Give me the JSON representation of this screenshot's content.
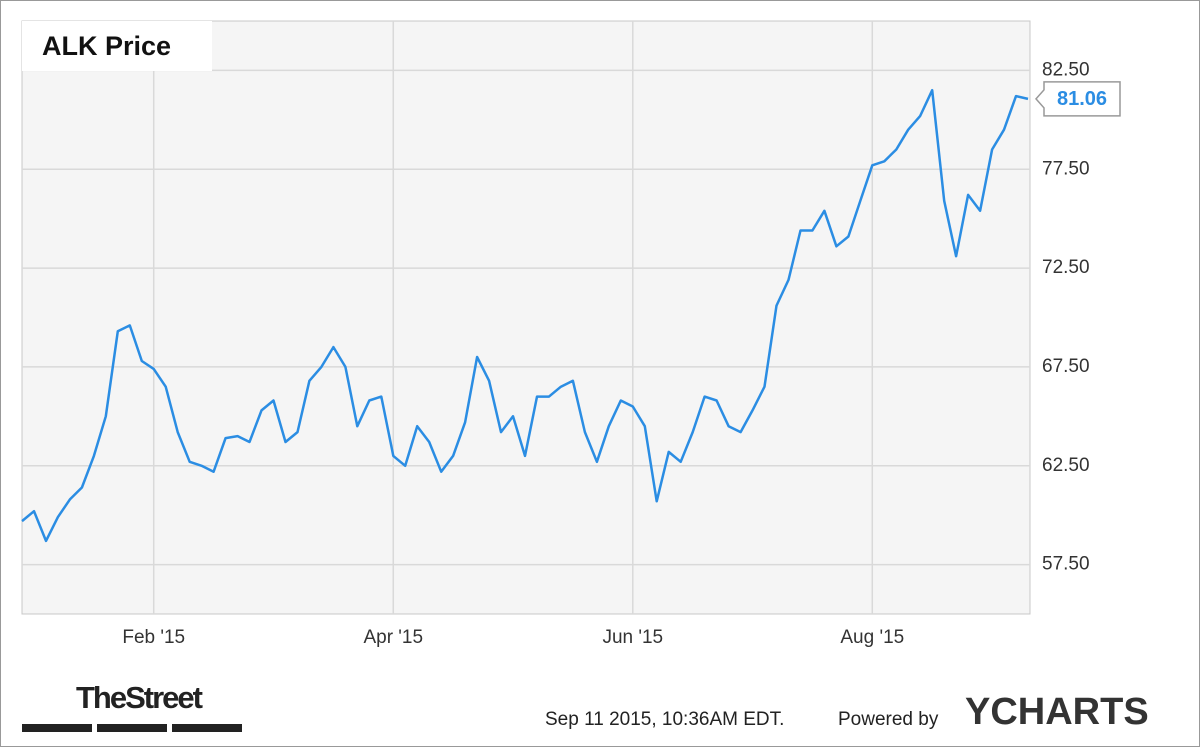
{
  "chart_data": {
    "type": "line",
    "title": "ALK Price",
    "categories": [
      null,
      null,
      null,
      null,
      null,
      null,
      null,
      null,
      null,
      null,
      null,
      "Feb '15",
      null,
      null,
      null,
      null,
      null,
      null,
      null,
      null,
      null,
      null,
      null,
      null,
      null,
      null,
      null,
      null,
      null,
      null,
      null,
      "Apr '15",
      null,
      null,
      null,
      null,
      null,
      null,
      null,
      null,
      null,
      null,
      null,
      null,
      null,
      null,
      null,
      null,
      null,
      null,
      null,
      "Jun '15",
      null,
      null,
      null,
      null,
      null,
      null,
      null,
      null,
      null,
      null,
      null,
      null,
      null,
      null,
      null,
      null,
      null,
      null,
      null,
      "Aug '15",
      null,
      null,
      null,
      null,
      null,
      null,
      null,
      null,
      null,
      null,
      null,
      null,
      null
    ],
    "series": [
      {
        "name": "ALK Price",
        "color": "#2b8de3",
        "values": [
          59.7,
          60.2,
          58.7,
          59.9,
          60.8,
          61.4,
          63.0,
          65.0,
          69.3,
          69.6,
          67.8,
          67.4,
          66.5,
          64.2,
          62.7,
          62.5,
          62.2,
          63.9,
          64.0,
          63.7,
          65.3,
          65.8,
          63.7,
          64.2,
          66.8,
          67.5,
          68.5,
          67.5,
          64.5,
          65.8,
          66.0,
          63.0,
          62.5,
          64.5,
          63.7,
          62.2,
          63.0,
          64.7,
          68.0,
          66.8,
          64.2,
          65.0,
          63.0,
          66.0,
          66.0,
          66.5,
          66.8,
          64.2,
          62.7,
          64.5,
          65.8,
          65.5,
          64.5,
          60.7,
          63.2,
          62.7,
          64.2,
          66.0,
          65.8,
          64.5,
          64.2,
          65.3,
          66.5,
          70.6,
          71.9,
          74.4,
          74.4,
          75.4,
          73.6,
          74.1,
          75.9,
          77.7,
          77.9,
          78.5,
          79.5,
          80.2,
          81.5,
          75.9,
          73.1,
          76.2,
          75.4,
          78.5,
          79.5,
          81.2,
          81.06
        ]
      }
    ],
    "ylim": [
      55,
      85
    ],
    "yticks": [
      {
        "value": 57.5,
        "label": "57.50"
      },
      {
        "value": 62.5,
        "label": "62.50"
      },
      {
        "value": 67.5,
        "label": "67.50"
      },
      {
        "value": 72.5,
        "label": "72.50"
      },
      {
        "value": 77.5,
        "label": "77.50"
      },
      {
        "value": 82.5,
        "label": "82.50"
      }
    ],
    "grid": true
  },
  "footer": {
    "logo": "TheStreet",
    "timestamp": "Sep 11 2015, 10:36AM EDT.",
    "powered_by": "Powered by",
    "brand": "YCHARTS"
  }
}
